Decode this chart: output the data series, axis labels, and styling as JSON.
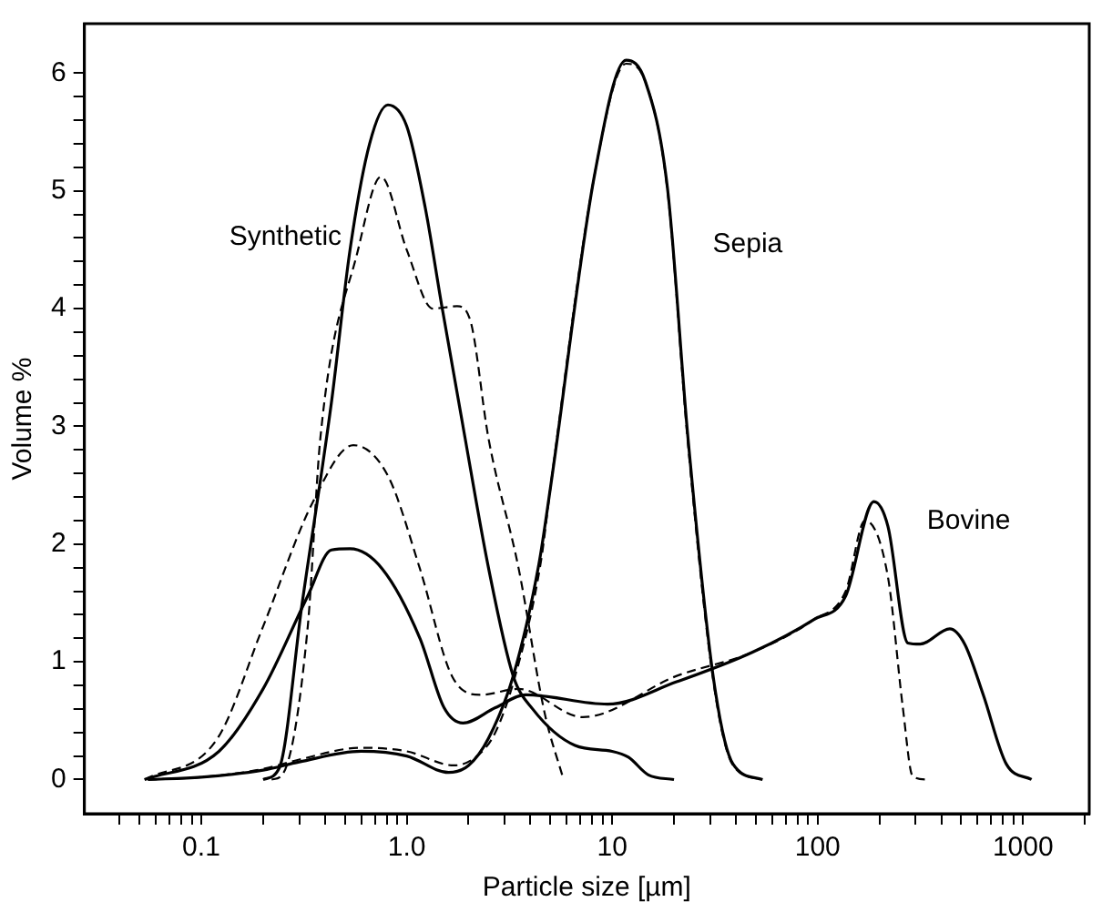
{
  "chart_data": {
    "type": "line",
    "xlabel": "Particle size [µm]",
    "ylabel": "Volume %",
    "log": "x",
    "grid": false,
    "legend": false,
    "marker": "none",
    "xlim": [
      0.027,
      2100
    ],
    "ylim": [
      -0.29,
      6.42
    ],
    "xticks": [
      {
        "value": 0.04,
        "label": null
      },
      {
        "value": 0.05,
        "label": null
      },
      {
        "value": 0.06,
        "label": null
      },
      {
        "value": 0.07,
        "label": null
      },
      {
        "value": 0.08,
        "label": null
      },
      {
        "value": 0.09,
        "label": null
      },
      0.1,
      {
        "value": 0.2,
        "label": null
      },
      {
        "value": 0.3,
        "label": null
      },
      {
        "value": 0.4,
        "label": null
      },
      {
        "value": 0.5,
        "label": null
      },
      {
        "value": 0.6,
        "label": null
      },
      {
        "value": 0.7,
        "label": null
      },
      {
        "value": 0.8,
        "label": null
      },
      {
        "value": 0.9,
        "label": null
      },
      {
        "value": 1,
        "label": "1.0"
      },
      {
        "value": 2,
        "label": null
      },
      {
        "value": 3,
        "label": null
      },
      {
        "value": 4,
        "label": null
      },
      {
        "value": 5,
        "label": null
      },
      {
        "value": 6,
        "label": null
      },
      {
        "value": 7,
        "label": null
      },
      {
        "value": 8,
        "label": null
      },
      {
        "value": 9,
        "label": null
      },
      10,
      {
        "value": 20,
        "label": null
      },
      {
        "value": 30,
        "label": null
      },
      {
        "value": 40,
        "label": null
      },
      {
        "value": 50,
        "label": null
      },
      {
        "value": 60,
        "label": null
      },
      {
        "value": 70,
        "label": null
      },
      {
        "value": 80,
        "label": null
      },
      {
        "value": 90,
        "label": null
      },
      100,
      {
        "value": 200,
        "label": null
      },
      {
        "value": 300,
        "label": null
      },
      {
        "value": 400,
        "label": null
      },
      {
        "value": 500,
        "label": null
      },
      {
        "value": 600,
        "label": null
      },
      {
        "value": 700,
        "label": null
      },
      {
        "value": 800,
        "label": null
      },
      {
        "value": 900,
        "label": null
      },
      1000,
      {
        "value": 2000,
        "label": null
      }
    ],
    "yticks": [
      0,
      {
        "value": 0.2,
        "label": null
      },
      {
        "value": 0.4,
        "label": null
      },
      {
        "value": 0.6,
        "label": null
      },
      {
        "value": 0.8,
        "label": null
      },
      1,
      {
        "value": 1.2,
        "label": null
      },
      {
        "value": 1.4,
        "label": null
      },
      {
        "value": 1.6,
        "label": null
      },
      {
        "value": 1.8,
        "label": null
      },
      2,
      {
        "value": 2.2,
        "label": null
      },
      {
        "value": 2.4,
        "label": null
      },
      {
        "value": 2.6,
        "label": null
      },
      {
        "value": 2.8,
        "label": null
      },
      3,
      {
        "value": 3.2,
        "label": null
      },
      {
        "value": 3.4,
        "label": null
      },
      {
        "value": 3.6,
        "label": null
      },
      {
        "value": 3.8,
        "label": null
      },
      4,
      {
        "value": 4.2,
        "label": null
      },
      {
        "value": 4.4,
        "label": null
      },
      {
        "value": 4.6,
        "label": null
      },
      {
        "value": 4.8,
        "label": null
      },
      5,
      {
        "value": 5.2,
        "label": null
      },
      {
        "value": 5.4,
        "label": null
      },
      {
        "value": 5.6,
        "label": null
      },
      {
        "value": 5.8,
        "label": null
      },
      6
    ],
    "annotations": [
      "Synthetic",
      "Sepia",
      "Bovine"
    ],
    "series": [
      {
        "color": "#000000",
        "line_style": "solid",
        "x": [
          0.2,
          0.24,
          0.31,
          0.43,
          0.53,
          0.66,
          0.81,
          1.0,
          1.23,
          1.49,
          1.88,
          2.5,
          3.3,
          4.1,
          6.6,
          10,
          12,
          15,
          20
        ],
        "values": [
          0,
          0.1,
          1.5,
          3.2,
          4.5,
          5.4,
          5.73,
          5.55,
          4.86,
          4.0,
          3.0,
          1.8,
          0.88,
          0.6,
          0.29,
          0.24,
          0.19,
          0.04,
          0
        ]
      },
      {
        "color": "#000000",
        "line_style": "dashed",
        "x": [
          0.22,
          0.25,
          0.33,
          0.38,
          0.58,
          0.75,
          1.0,
          1.34,
          1.76,
          2.04,
          2.5,
          3.5,
          4.7,
          5.8
        ],
        "values": [
          0,
          0.05,
          1.3,
          2.9,
          4.5,
          5.12,
          4.5,
          4.0,
          4.02,
          3.9,
          2.9,
          1.8,
          0.56,
          0
        ]
      },
      {
        "color": "#000000",
        "line_style": "solid",
        "x": [
          0.055,
          0.1,
          0.2,
          0.3,
          0.6,
          1.0,
          1.6,
          2.0,
          2.5,
          3.3,
          4.4,
          5.0,
          8.2,
          11.7,
          14.5,
          18.6,
          23.4,
          31.3,
          38.8,
          54
        ],
        "values": [
          0,
          0.02,
          0.08,
          0.15,
          0.24,
          0.2,
          0.06,
          0.12,
          0.35,
          0.88,
          1.83,
          2.47,
          5.13,
          6.11,
          5.93,
          5.02,
          2.9,
          0.83,
          0.13,
          0
        ]
      },
      {
        "color": "#000000",
        "line_style": "dashed",
        "x": [
          0.055,
          0.1,
          0.2,
          0.3,
          0.6,
          1.0,
          1.7,
          2.2,
          2.7,
          3.4,
          4.5,
          5.0,
          8.2,
          11.7,
          14.5,
          18.6,
          23.4,
          31.3,
          38.8,
          54
        ],
        "values": [
          0,
          0.02,
          0.09,
          0.17,
          0.27,
          0.24,
          0.12,
          0.2,
          0.4,
          0.9,
          1.85,
          2.47,
          5.13,
          6.08,
          5.93,
          5.0,
          2.85,
          0.8,
          0.12,
          0
        ]
      },
      {
        "color": "#000000",
        "line_style": "solid",
        "x": [
          0.053,
          0.122,
          0.2,
          0.33,
          0.43,
          0.53,
          0.76,
          1.16,
          1.52,
          1.88,
          2.7,
          3.8,
          9.5,
          20.6,
          48,
          96,
          137,
          188,
          220,
          275,
          316,
          440,
          520,
          640,
          830,
          1100
        ],
        "values": [
          0,
          0.24,
          0.77,
          1.56,
          1.95,
          1.96,
          1.79,
          1.2,
          0.61,
          0.48,
          0.61,
          0.72,
          0.64,
          0.83,
          1.08,
          1.36,
          1.56,
          2.36,
          2.15,
          1.16,
          1.15,
          1.28,
          1.15,
          0.72,
          0.13,
          0
        ]
      },
      {
        "color": "#000000",
        "line_style": "dashed",
        "x": [
          0.053,
          0.12,
          0.2,
          0.35,
          0.55,
          0.81,
          1.16,
          1.66,
          2.3,
          3.5,
          7.2,
          20.6,
          48,
          96,
          137,
          170,
          220,
          260,
          290,
          340
        ],
        "values": [
          0,
          0.35,
          1.3,
          2.36,
          2.84,
          2.58,
          1.79,
          0.88,
          0.72,
          0.77,
          0.53,
          0.88,
          1.08,
          1.36,
          1.6,
          2.2,
          1.72,
          0.61,
          0.03,
          0
        ]
      }
    ]
  }
}
